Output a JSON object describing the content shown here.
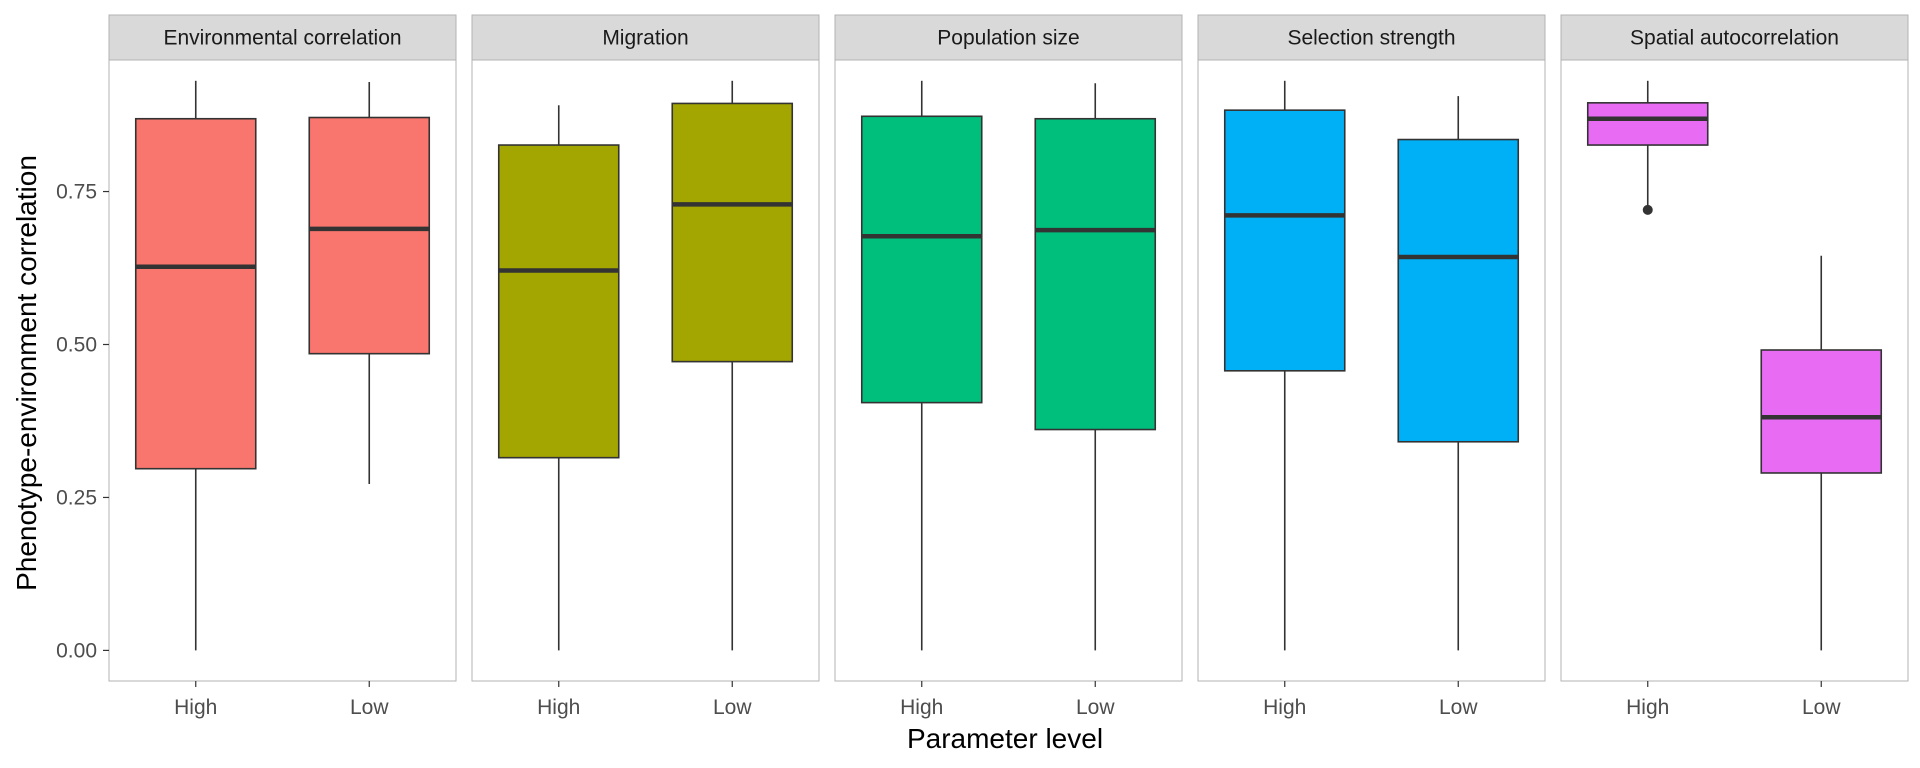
{
  "chart_data": {
    "type": "boxplot",
    "xlabel": "Parameter level",
    "ylabel": "Phenotype-environment correlation",
    "ylim": [
      -0.05,
      0.965
    ],
    "yticks": [
      0.0,
      0.25,
      0.5,
      0.75
    ],
    "ytick_labels": [
      "0.00",
      "0.25",
      "0.50",
      "0.75"
    ],
    "categories": [
      "High",
      "Low"
    ],
    "grid": false,
    "legend": "none",
    "facets": [
      {
        "label": "Environmental correlation",
        "color": "#F8766D",
        "boxes": [
          {
            "category": "High",
            "lower_whisker": 0.0,
            "q1": 0.297,
            "median": 0.627,
            "q3": 0.869,
            "upper_whisker": 0.931,
            "outliers": []
          },
          {
            "category": "Low",
            "lower_whisker": 0.272,
            "q1": 0.485,
            "median": 0.689,
            "q3": 0.871,
            "upper_whisker": 0.929,
            "outliers": []
          }
        ]
      },
      {
        "label": "Migration",
        "color": "#A3A500",
        "boxes": [
          {
            "category": "High",
            "lower_whisker": 0.0,
            "q1": 0.315,
            "median": 0.621,
            "q3": 0.826,
            "upper_whisker": 0.891,
            "outliers": []
          },
          {
            "category": "Low",
            "lower_whisker": 0.0,
            "q1": 0.472,
            "median": 0.729,
            "q3": 0.894,
            "upper_whisker": 0.931,
            "outliers": []
          }
        ]
      },
      {
        "label": "Population size",
        "color": "#00BF7D",
        "boxes": [
          {
            "category": "High",
            "lower_whisker": 0.0,
            "q1": 0.405,
            "median": 0.677,
            "q3": 0.873,
            "upper_whisker": 0.931,
            "outliers": []
          },
          {
            "category": "Low",
            "lower_whisker": 0.0,
            "q1": 0.361,
            "median": 0.687,
            "q3": 0.869,
            "upper_whisker": 0.927,
            "outliers": []
          }
        ]
      },
      {
        "label": "Selection strength",
        "color": "#00B0F6",
        "boxes": [
          {
            "category": "High",
            "lower_whisker": 0.0,
            "q1": 0.457,
            "median": 0.711,
            "q3": 0.883,
            "upper_whisker": 0.931,
            "outliers": []
          },
          {
            "category": "Low",
            "lower_whisker": 0.0,
            "q1": 0.341,
            "median": 0.643,
            "q3": 0.835,
            "upper_whisker": 0.906,
            "outliers": []
          }
        ]
      },
      {
        "label": "Spatial autocorrelation",
        "color": "#E76BF3",
        "boxes": [
          {
            "category": "High",
            "lower_whisker": 0.72,
            "q1": 0.826,
            "median": 0.869,
            "q3": 0.895,
            "upper_whisker": 0.931,
            "outliers": [
              0.72
            ]
          },
          {
            "category": "Low",
            "lower_whisker": 0.0,
            "q1": 0.29,
            "median": 0.381,
            "q3": 0.491,
            "upper_whisker": 0.645,
            "outliers": []
          }
        ]
      }
    ]
  }
}
